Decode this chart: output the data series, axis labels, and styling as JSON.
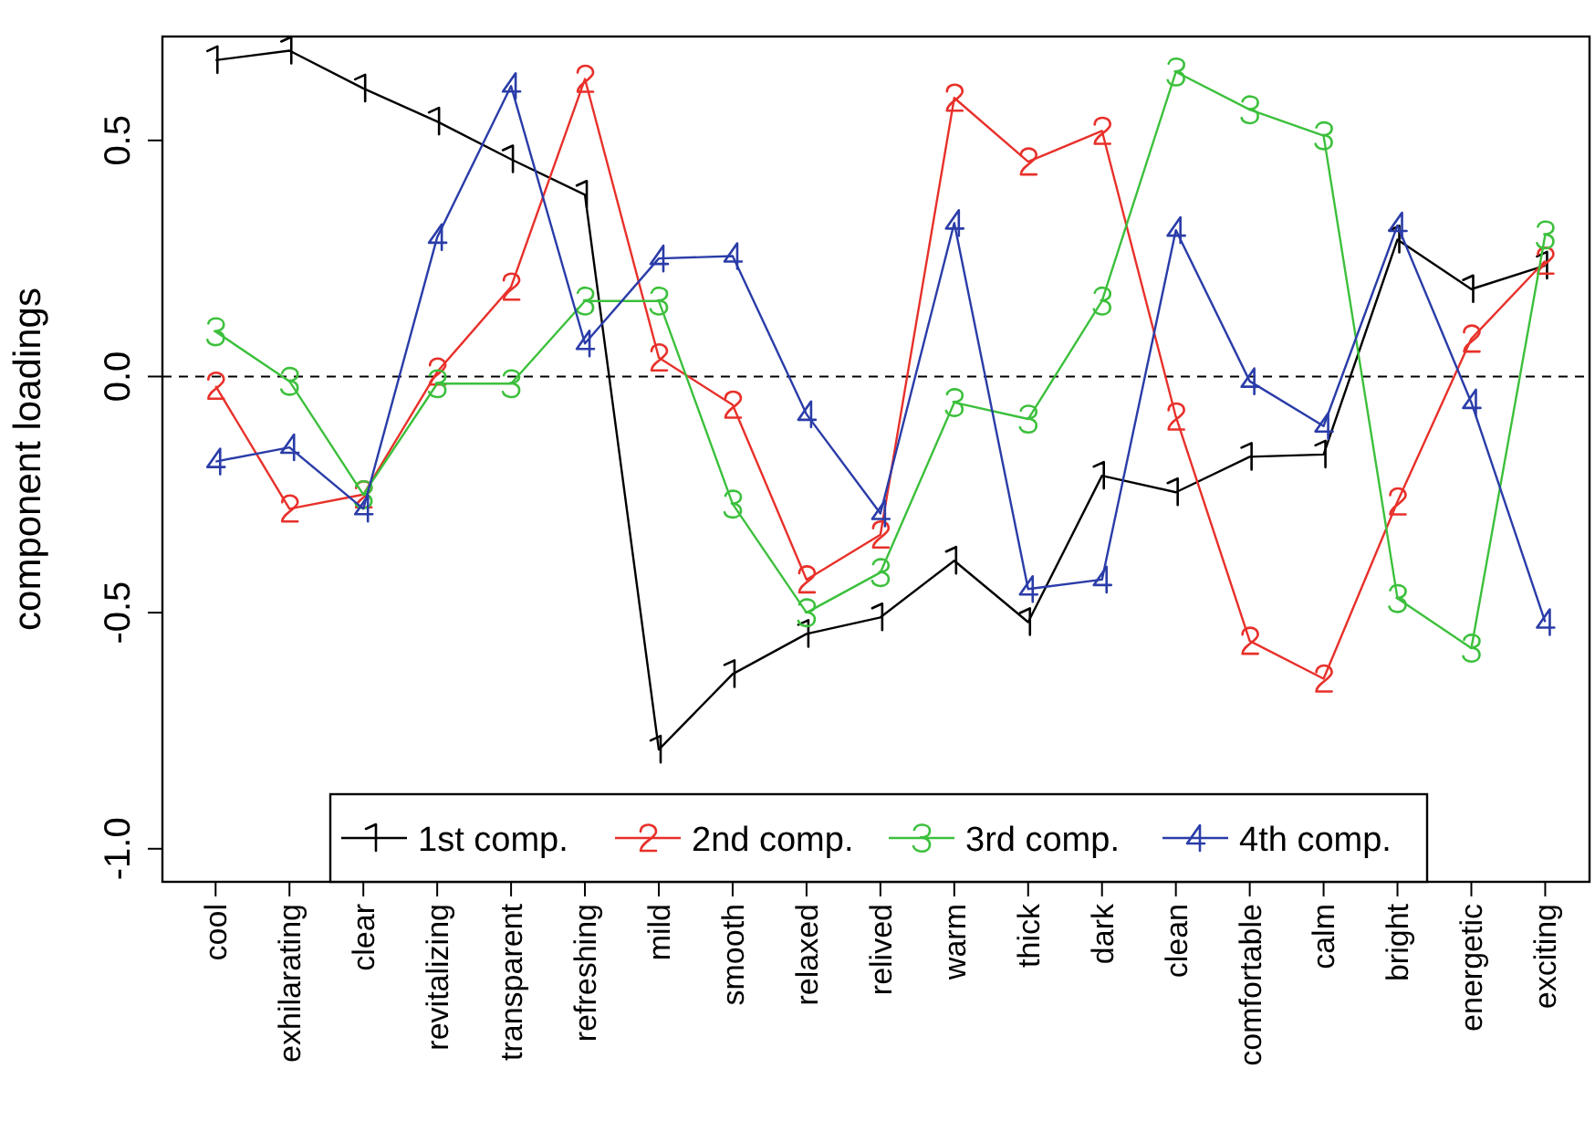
{
  "chart_data": {
    "type": "line",
    "ylabel": "component loadings",
    "categories": [
      "cool",
      "exhilarating",
      "clear",
      "revitalizing",
      "transparent",
      "refreshing",
      "mild",
      "smooth",
      "relaxed",
      "relived",
      "warm",
      "thick",
      "dark",
      "clean",
      "comfortable",
      "calm",
      "bright",
      "energetic",
      "exciting"
    ],
    "series": [
      {
        "name": "1st comp.",
        "color": "#000000",
        "values": [
          0.67,
          0.69,
          0.61,
          0.54,
          0.46,
          0.385,
          -0.79,
          -0.63,
          -0.545,
          -0.51,
          -0.39,
          -0.52,
          -0.21,
          -0.245,
          -0.17,
          -0.165,
          0.29,
          0.185,
          0.235
        ]
      },
      {
        "name": "2nd comp.",
        "color": "#e8302a",
        "values": [
          -0.02,
          -0.28,
          -0.25,
          0.01,
          0.19,
          0.63,
          0.04,
          -0.06,
          -0.43,
          -0.335,
          0.59,
          0.455,
          0.52,
          -0.085,
          -0.56,
          -0.64,
          -0.265,
          0.08,
          0.245
        ]
      },
      {
        "name": "3rd comp.",
        "color": "#3cc03c",
        "values": [
          0.095,
          -0.01,
          -0.25,
          -0.015,
          -0.015,
          0.16,
          0.16,
          -0.27,
          -0.5,
          -0.415,
          -0.055,
          -0.09,
          0.16,
          0.645,
          0.565,
          0.51,
          -0.47,
          -0.575,
          0.3
        ]
      },
      {
        "name": "4th comp.",
        "color": "#2a3ca8",
        "values": [
          -0.18,
          -0.15,
          -0.28,
          0.295,
          0.615,
          0.07,
          0.25,
          0.255,
          -0.08,
          -0.29,
          0.325,
          -0.45,
          -0.43,
          0.31,
          -0.01,
          -0.105,
          0.32,
          -0.055,
          -0.52
        ]
      }
    ],
    "ylim": [
      -1.07,
      0.72
    ],
    "yticks": [
      {
        "value": -1,
        "label": "-1.0"
      },
      {
        "value": -0.5,
        "label": "-0.5"
      },
      {
        "value": 0,
        "label": "0.0"
      },
      {
        "value": 0.5,
        "label": "0.5"
      }
    ],
    "ref_lines": [
      {
        "axis": "y",
        "value": 0,
        "line_style": "dashed",
        "color": "#000000"
      }
    ],
    "grid": false,
    "legend": "bottom",
    "marker": "cross"
  }
}
